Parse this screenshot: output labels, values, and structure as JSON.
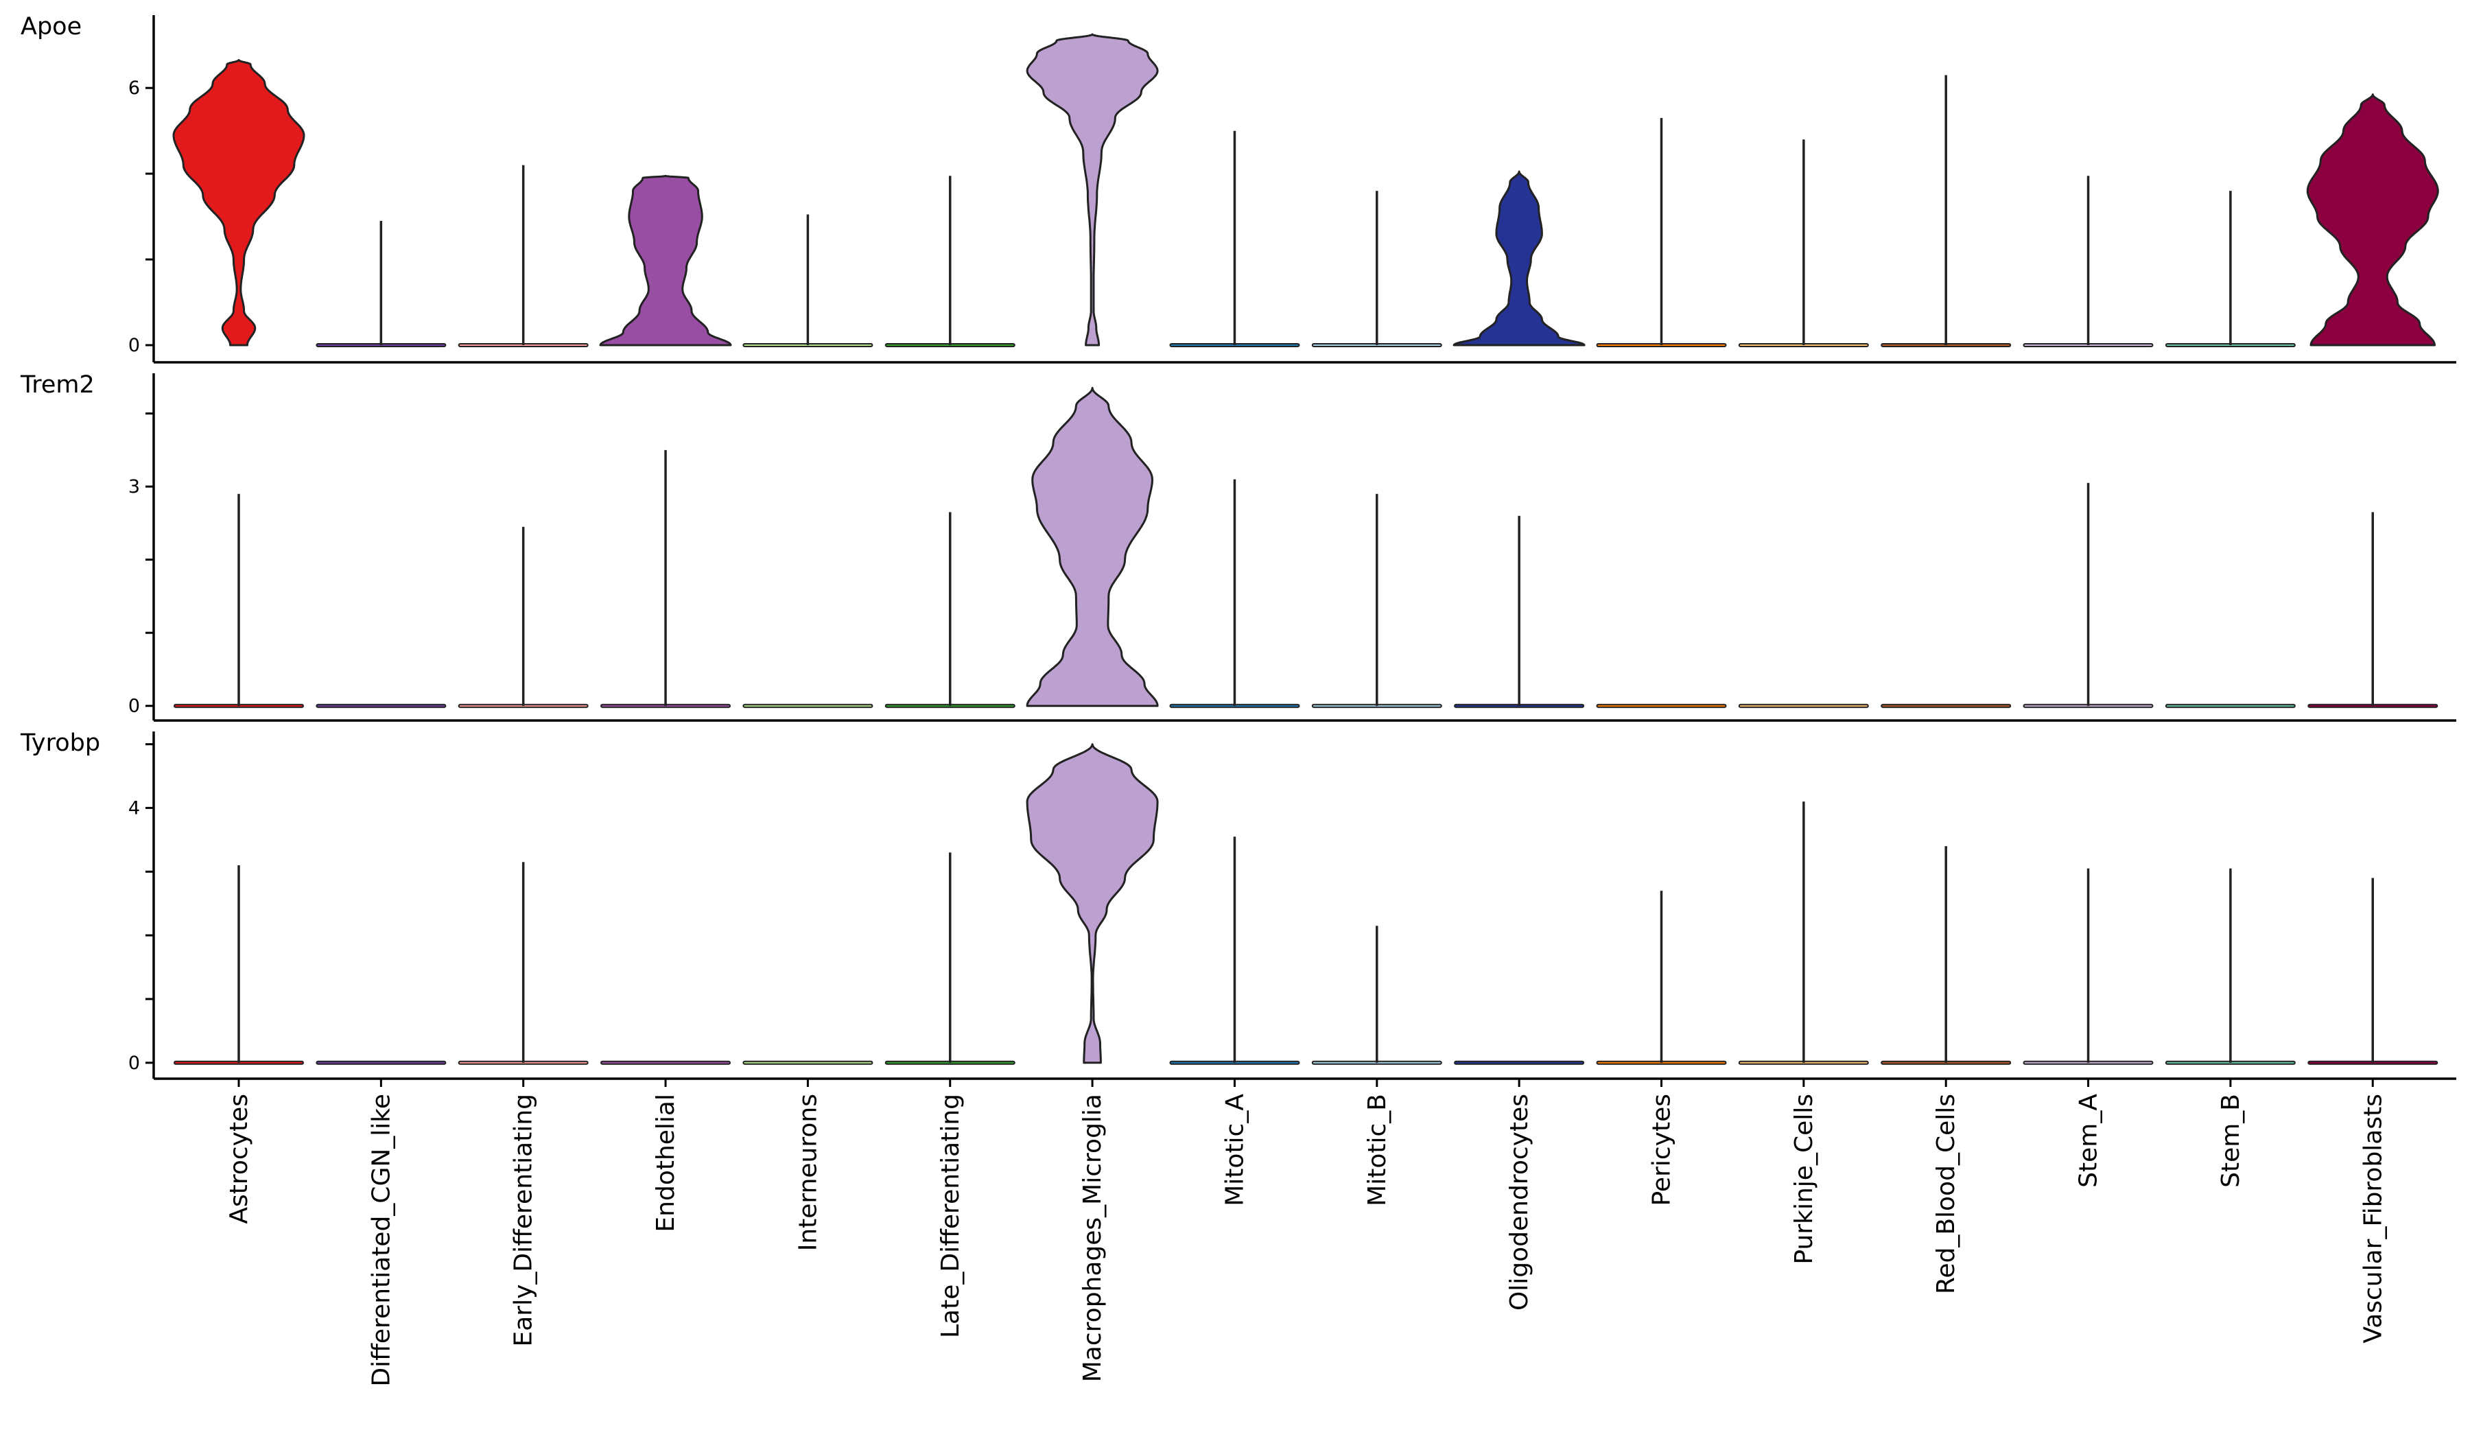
{
  "chart_data": {
    "type": "violin",
    "title": "",
    "xlabel": "",
    "ylabel": "",
    "grid": false,
    "categories": [
      "Astrocytes",
      "Differentiated_CGN_like",
      "Early_Differentiating",
      "Endothelial",
      "Interneurons",
      "Late_Differentiating",
      "Macrophages_Microglia",
      "Mitotic_A",
      "Mitotic_B",
      "Oligodendrocytes",
      "Pericytes",
      "Purkinje_Cells",
      "Red_Blood_Cells",
      "Stem_A",
      "Stem_B",
      "Vascular_Fibroblasts"
    ],
    "colors": [
      "#e31a1c",
      "#6a3d9a",
      "#fb9a99",
      "#984ea3",
      "#b2df8a",
      "#33a02c",
      "#bca0cf",
      "#1f78b4",
      "#a6cee3",
      "#253494",
      "#ff7f00",
      "#fdbf6f",
      "#b15928",
      "#cab2d6",
      "#66c2a5",
      "#8c0040"
    ],
    "panels": [
      {
        "gene": "Apoe",
        "ylim": [
          -0.4,
          7.7
        ],
        "ticks": [
          "0",
          "6"
        ],
        "tick_values": [
          0,
          6
        ],
        "minor_ticks": [
          2,
          4
        ],
        "series": [
          {
            "category": "Astrocytes",
            "max": 6.65,
            "shape": [
              [
                0,
                0.13
              ],
              [
                0.4,
                0.25
              ],
              [
                0.8,
                0.08
              ],
              [
                1.3,
                0.03
              ],
              [
                2,
                0.08
              ],
              [
                2.7,
                0.22
              ],
              [
                3.5,
                0.55
              ],
              [
                4.2,
                0.85
              ],
              [
                4.9,
                1.0
              ],
              [
                5.5,
                0.75
              ],
              [
                6.1,
                0.4
              ],
              [
                6.55,
                0.18
              ],
              [
                6.65,
                0.0
              ]
            ]
          },
          {
            "category": "Differentiated_CGN_like",
            "max": 2.9,
            "shape": [
              [
                0,
                1.0
              ],
              [
                0.02,
                0.0
              ]
            ]
          },
          {
            "category": "Early_Differentiating",
            "max": 4.2,
            "shape": [
              [
                0,
                1.0
              ],
              [
                0.02,
                0.0
              ]
            ]
          },
          {
            "category": "Endothelial",
            "max": 3.95,
            "shape": [
              [
                0,
                1.0
              ],
              [
                0.3,
                0.65
              ],
              [
                0.8,
                0.4
              ],
              [
                1.3,
                0.26
              ],
              [
                1.8,
                0.32
              ],
              [
                2.4,
                0.48
              ],
              [
                3.0,
                0.56
              ],
              [
                3.6,
                0.5
              ],
              [
                3.9,
                0.35
              ],
              [
                3.95,
                0.0
              ]
            ]
          },
          {
            "category": "Interneurons",
            "max": 3.05,
            "shape": [
              [
                0,
                1.0
              ],
              [
                0.02,
                0.0
              ]
            ]
          },
          {
            "category": "Late_Differentiating",
            "max": 3.95,
            "shape": [
              [
                0,
                1.0
              ],
              [
                0.02,
                0.0
              ]
            ]
          },
          {
            "category": "Macrophages_Microglia",
            "max": 7.25,
            "shape": [
              [
                0,
                0.1
              ],
              [
                0.4,
                0.06
              ],
              [
                0.8,
                0.02
              ],
              [
                1.5,
                0.02
              ],
              [
                2.5,
                0.03
              ],
              [
                3.5,
                0.07
              ],
              [
                4.5,
                0.14
              ],
              [
                5.3,
                0.35
              ],
              [
                5.9,
                0.75
              ],
              [
                6.4,
                1.0
              ],
              [
                6.8,
                0.85
              ],
              [
                7.1,
                0.55
              ],
              [
                7.25,
                0.0
              ]
            ]
          },
          {
            "category": "Mitotic_A",
            "max": 5.0,
            "shape": [
              [
                0,
                1.0
              ],
              [
                0.02,
                0.0
              ]
            ]
          },
          {
            "category": "Mitotic_B",
            "max": 3.6,
            "shape": [
              [
                0,
                1.0
              ],
              [
                0.02,
                0.0
              ]
            ]
          },
          {
            "category": "Oligodendrocytes",
            "max": 4.05,
            "shape": [
              [
                0,
                1.0
              ],
              [
                0.2,
                0.6
              ],
              [
                0.6,
                0.35
              ],
              [
                1.0,
                0.16
              ],
              [
                1.5,
                0.12
              ],
              [
                2.0,
                0.18
              ],
              [
                2.6,
                0.35
              ],
              [
                3.2,
                0.3
              ],
              [
                3.8,
                0.14
              ],
              [
                4.05,
                0.0
              ]
            ]
          },
          {
            "category": "Pericytes",
            "max": 5.3,
            "shape": [
              [
                0,
                1.0
              ],
              [
                0.02,
                0.0
              ]
            ]
          },
          {
            "category": "Purkinje_Cells",
            "max": 4.8,
            "shape": [
              [
                0,
                1.0
              ],
              [
                0.02,
                0.0
              ]
            ]
          },
          {
            "category": "Red_Blood_Cells",
            "max": 6.3,
            "shape": [
              [
                0,
                1.0
              ],
              [
                0.02,
                0.0
              ]
            ]
          },
          {
            "category": "Stem_A",
            "max": 3.95,
            "shape": [
              [
                0,
                1.0
              ],
              [
                0.02,
                0.0
              ]
            ]
          },
          {
            "category": "Stem_B",
            "max": 3.6,
            "shape": [
              [
                0,
                1.0
              ],
              [
                0.02,
                0.0
              ]
            ]
          },
          {
            "category": "Vascular_Fibroblasts",
            "max": 5.85,
            "shape": [
              [
                0,
                0.95
              ],
              [
                0.5,
                0.72
              ],
              [
                1.0,
                0.38
              ],
              [
                1.6,
                0.22
              ],
              [
                2.3,
                0.5
              ],
              [
                3.0,
                0.85
              ],
              [
                3.6,
                1.0
              ],
              [
                4.3,
                0.8
              ],
              [
                5.0,
                0.45
              ],
              [
                5.6,
                0.18
              ],
              [
                5.85,
                0.0
              ]
            ]
          }
        ]
      },
      {
        "gene": "Trem2",
        "ylim": [
          -0.2,
          4.55
        ],
        "ticks": [
          "0",
          "3"
        ],
        "tick_values": [
          0,
          3
        ],
        "minor_ticks": [
          1,
          2,
          4
        ],
        "series": [
          {
            "category": "Astrocytes",
            "max": 2.9,
            "shape": [
              [
                0,
                1.0
              ],
              [
                0.02,
                0.0
              ]
            ]
          },
          {
            "category": "Differentiated_CGN_like",
            "max": 0,
            "shape": [
              [
                0,
                1.0
              ],
              [
                0.02,
                0.0
              ]
            ]
          },
          {
            "category": "Early_Differentiating",
            "max": 2.45,
            "shape": [
              [
                0,
                1.0
              ],
              [
                0.02,
                0.0
              ]
            ]
          },
          {
            "category": "Endothelial",
            "max": 3.5,
            "shape": [
              [
                0,
                1.0
              ],
              [
                0.02,
                0.0
              ]
            ]
          },
          {
            "category": "Interneurons",
            "max": 0,
            "shape": [
              [
                0,
                1.0
              ],
              [
                0.02,
                0.0
              ]
            ]
          },
          {
            "category": "Late_Differentiating",
            "max": 2.65,
            "shape": [
              [
                0,
                1.0
              ],
              [
                0.02,
                0.0
              ]
            ]
          },
          {
            "category": "Macrophages_Microglia",
            "max": 4.35,
            "shape": [
              [
                0,
                1.0
              ],
              [
                0.3,
                0.8
              ],
              [
                0.7,
                0.45
              ],
              [
                1.1,
                0.24
              ],
              [
                1.5,
                0.25
              ],
              [
                2.0,
                0.5
              ],
              [
                2.7,
                0.85
              ],
              [
                3.1,
                0.92
              ],
              [
                3.6,
                0.6
              ],
              [
                4.1,
                0.25
              ],
              [
                4.35,
                0.0
              ]
            ]
          },
          {
            "category": "Mitotic_A",
            "max": 3.1,
            "shape": [
              [
                0,
                1.0
              ],
              [
                0.02,
                0.0
              ]
            ]
          },
          {
            "category": "Mitotic_B",
            "max": 2.9,
            "shape": [
              [
                0,
                1.0
              ],
              [
                0.02,
                0.0
              ]
            ]
          },
          {
            "category": "Oligodendrocytes",
            "max": 2.6,
            "shape": [
              [
                0,
                1.0
              ],
              [
                0.02,
                0.0
              ]
            ]
          },
          {
            "category": "Pericytes",
            "max": 0,
            "shape": [
              [
                0,
                1.0
              ],
              [
                0.02,
                0.0
              ]
            ]
          },
          {
            "category": "Purkinje_Cells",
            "max": 0,
            "shape": [
              [
                0,
                1.0
              ],
              [
                0.02,
                0.0
              ]
            ]
          },
          {
            "category": "Red_Blood_Cells",
            "max": 0,
            "shape": [
              [
                0,
                1.0
              ],
              [
                0.02,
                0.0
              ]
            ]
          },
          {
            "category": "Stem_A",
            "max": 3.05,
            "shape": [
              [
                0,
                1.0
              ],
              [
                0.02,
                0.0
              ]
            ]
          },
          {
            "category": "Stem_B",
            "max": 0,
            "shape": [
              [
                0,
                1.0
              ],
              [
                0.02,
                0.0
              ]
            ]
          },
          {
            "category": "Vascular_Fibroblasts",
            "max": 2.65,
            "shape": [
              [
                0,
                1.0
              ],
              [
                0.02,
                0.0
              ]
            ]
          }
        ]
      },
      {
        "gene": "Tyrobp",
        "ylim": [
          -0.25,
          5.2
        ],
        "ticks": [
          "0",
          "4"
        ],
        "tick_values": [
          0,
          4
        ],
        "minor_ticks": [
          1,
          2,
          3,
          5
        ],
        "series": [
          {
            "category": "Astrocytes",
            "max": 3.1,
            "shape": [
              [
                0,
                1.0
              ],
              [
                0.02,
                0.0
              ]
            ]
          },
          {
            "category": "Differentiated_CGN_like",
            "max": 0,
            "shape": [
              [
                0,
                1.0
              ],
              [
                0.02,
                0.0
              ]
            ]
          },
          {
            "category": "Early_Differentiating",
            "max": 3.15,
            "shape": [
              [
                0,
                1.0
              ],
              [
                0.02,
                0.0
              ]
            ]
          },
          {
            "category": "Endothelial",
            "max": 0,
            "shape": [
              [
                0,
                1.0
              ],
              [
                0.02,
                0.0
              ]
            ]
          },
          {
            "category": "Interneurons",
            "max": 0,
            "shape": [
              [
                0,
                1.0
              ],
              [
                0.02,
                0.0
              ]
            ]
          },
          {
            "category": "Late_Differentiating",
            "max": 3.3,
            "shape": [
              [
                0,
                1.0
              ],
              [
                0.02,
                0.0
              ]
            ]
          },
          {
            "category": "Macrophages_Microglia",
            "max": 5.0,
            "shape": [
              [
                0,
                0.13
              ],
              [
                0.3,
                0.12
              ],
              [
                0.7,
                0.02
              ],
              [
                1.3,
                0.01
              ],
              [
                2.0,
                0.05
              ],
              [
                2.4,
                0.22
              ],
              [
                2.9,
                0.5
              ],
              [
                3.5,
                0.94
              ],
              [
                4.1,
                1.0
              ],
              [
                4.6,
                0.6
              ],
              [
                5.0,
                0.0
              ]
            ]
          },
          {
            "category": "Mitotic_A",
            "max": 3.55,
            "shape": [
              [
                0,
                1.0
              ],
              [
                0.02,
                0.0
              ]
            ]
          },
          {
            "category": "Mitotic_B",
            "max": 2.15,
            "shape": [
              [
                0,
                1.0
              ],
              [
                0.02,
                0.0
              ]
            ]
          },
          {
            "category": "Oligodendrocytes",
            "max": 0,
            "shape": [
              [
                0,
                1.0
              ],
              [
                0.02,
                0.0
              ]
            ]
          },
          {
            "category": "Pericytes",
            "max": 2.7,
            "shape": [
              [
                0,
                1.0
              ],
              [
                0.02,
                0.0
              ]
            ]
          },
          {
            "category": "Purkinje_Cells",
            "max": 4.1,
            "shape": [
              [
                0,
                1.0
              ],
              [
                0.02,
                0.0
              ]
            ]
          },
          {
            "category": "Red_Blood_Cells",
            "max": 3.4,
            "shape": [
              [
                0,
                1.0
              ],
              [
                0.02,
                0.0
              ]
            ]
          },
          {
            "category": "Stem_A",
            "max": 3.05,
            "shape": [
              [
                0,
                1.0
              ],
              [
                0.02,
                0.0
              ]
            ]
          },
          {
            "category": "Stem_B",
            "max": 3.05,
            "shape": [
              [
                0,
                1.0
              ],
              [
                0.02,
                0.0
              ]
            ]
          },
          {
            "category": "Vascular_Fibroblasts",
            "max": 2.9,
            "shape": [
              [
                0,
                1.0
              ],
              [
                0.02,
                0.0
              ]
            ]
          }
        ]
      }
    ]
  }
}
